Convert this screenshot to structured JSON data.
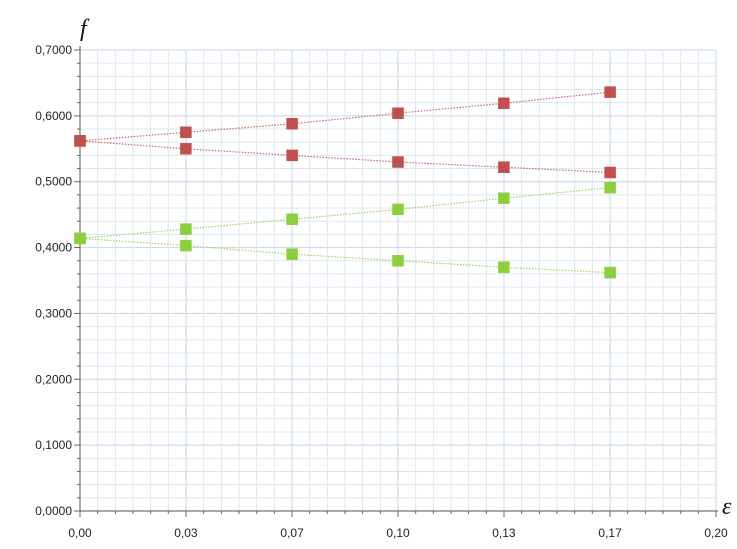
{
  "chart_data": {
    "type": "scatter",
    "title": "",
    "xlabel": "ε",
    "ylabel": "f",
    "xlim": [
      0,
      0.2
    ],
    "ylim": [
      0,
      0.7
    ],
    "x_ticks": [
      "0,00",
      "0,03",
      "0,07",
      "0,10",
      "0,13",
      "0,17",
      "0,20"
    ],
    "x_tick_values": [
      0,
      0.0333,
      0.0667,
      0.1,
      0.1333,
      0.1667,
      0.2
    ],
    "y_ticks": [
      "0,0000",
      "0,1000",
      "0,2000",
      "0,3000",
      "0,4000",
      "0,5000",
      "0,6000",
      "0,7000"
    ],
    "y_tick_values": [
      0,
      0.1,
      0.2,
      0.3,
      0.4,
      0.5,
      0.6,
      0.7
    ],
    "grid": true,
    "legend": "none",
    "series": [
      {
        "color": "#c0504d",
        "marker": "square",
        "line_style": "dotted",
        "x": [
          0,
          0.0333,
          0.0667,
          0.1,
          0.1333,
          0.1667
        ],
        "y": [
          0.562,
          0.575,
          0.588,
          0.604,
          0.619,
          0.636
        ]
      },
      {
        "color": "#c0504d",
        "marker": "square",
        "line_style": "dotted",
        "x": [
          0,
          0.0333,
          0.0667,
          0.1,
          0.1333,
          0.1667
        ],
        "y": [
          0.562,
          0.55,
          0.54,
          0.53,
          0.522,
          0.514
        ]
      },
      {
        "color": "#8ccf3c",
        "marker": "square",
        "line_style": "dotted",
        "x": [
          0,
          0.0333,
          0.0667,
          0.1,
          0.1333,
          0.1667
        ],
        "y": [
          0.414,
          0.428,
          0.443,
          0.458,
          0.475,
          0.491
        ]
      },
      {
        "color": "#8ccf3c",
        "marker": "square",
        "line_style": "dotted",
        "x": [
          0,
          0.0333,
          0.0667,
          0.1,
          0.1333,
          0.1667
        ],
        "y": [
          0.414,
          0.403,
          0.39,
          0.38,
          0.37,
          0.362
        ]
      }
    ]
  }
}
